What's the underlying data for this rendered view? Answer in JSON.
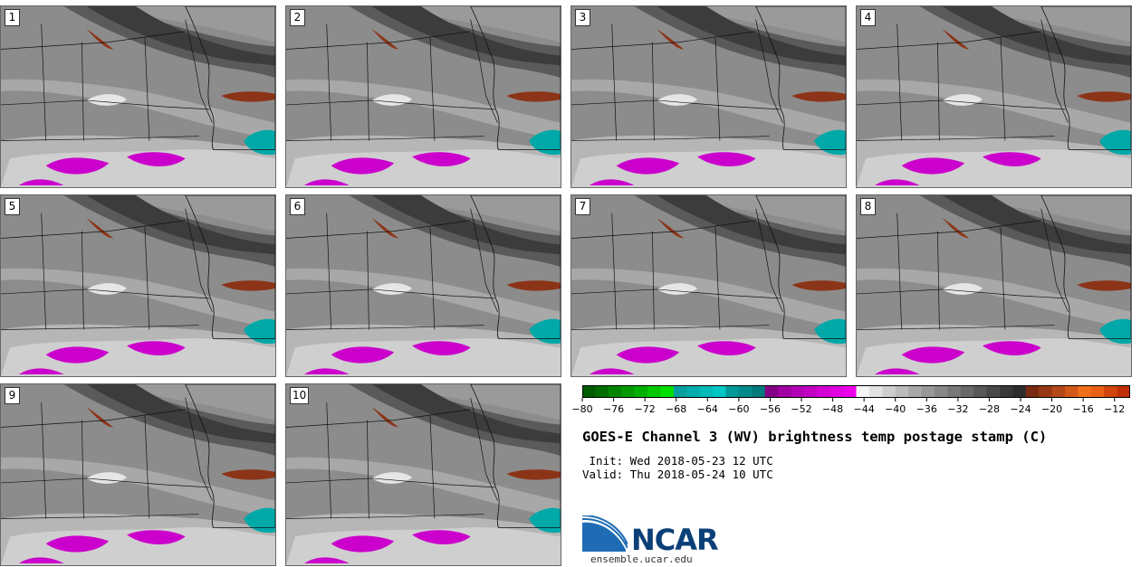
{
  "panels": [
    {
      "label": "1"
    },
    {
      "label": "2"
    },
    {
      "label": "3"
    },
    {
      "label": "4"
    },
    {
      "label": "5"
    },
    {
      "label": "6"
    },
    {
      "label": "7"
    },
    {
      "label": "8"
    },
    {
      "label": "9"
    },
    {
      "label": "10"
    }
  ],
  "colorbar": {
    "min": -80,
    "max": -10,
    "step": 2,
    "ticks": [
      "−80",
      "−76",
      "−72",
      "−68",
      "−64",
      "−60",
      "−56",
      "−52",
      "−48",
      "−44",
      "−40",
      "−36",
      "−32",
      "−28",
      "−24",
      "−20",
      "−16",
      "−12"
    ],
    "tick_values": [
      -80,
      -76,
      -72,
      -68,
      -64,
      -60,
      -56,
      -52,
      -48,
      -44,
      -40,
      -36,
      -32,
      -28,
      -24,
      -20,
      -16,
      -12
    ],
    "colors": [
      "#005a00",
      "#006e00",
      "#008400",
      "#009a00",
      "#00b000",
      "#00c800",
      "#00e000",
      "#009e9e",
      "#00acac",
      "#00b9b9",
      "#00c6c6",
      "#009898",
      "#008a8a",
      "#007a7a",
      "#860086",
      "#a000a0",
      "#b400b4",
      "#c200c2",
      "#d200d2",
      "#e000e0",
      "#ec00ec",
      "#f4f4f4",
      "#e2e2e2",
      "#cecece",
      "#bcbcbc",
      "#a8a8a8",
      "#989898",
      "#888888",
      "#787878",
      "#686868",
      "#585858",
      "#484848",
      "#383838",
      "#2c2c2c",
      "#7a2a10",
      "#963814",
      "#b44818",
      "#d2581a",
      "#f0701a",
      "#e86014",
      "#d0440e",
      "#c03008"
    ]
  },
  "title": "GOES-E Channel 3 (WV) brightness temp postage stamp (C)",
  "init_line": " Init: Wed 2018-05-23 12 UTC",
  "valid_line": "Valid: Thu 2018-05-24 10 UTC",
  "logo": {
    "name": "NCAR",
    "url": "ensemble.ucar.edu"
  }
}
